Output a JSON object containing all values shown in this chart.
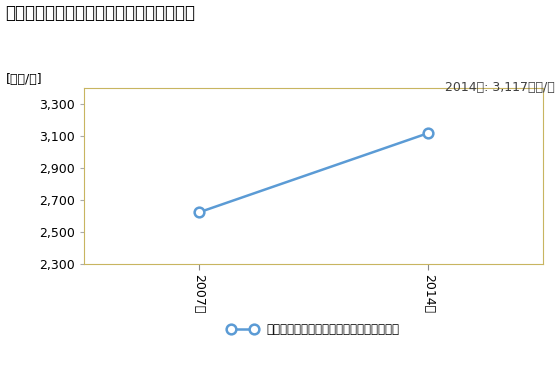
{
  "title": "卸売業の従業者一人当たり年間商品販売額",
  "ylabel": "[万円/人]",
  "annotation": "2014年: 3,117万円/人",
  "x_values": [
    2007,
    2014
  ],
  "y_values": [
    2620,
    3117
  ],
  "x_tick_labels": [
    "2007年",
    "2014年"
  ],
  "ylim": [
    2300,
    3400
  ],
  "yticks": [
    2300,
    2500,
    2700,
    2900,
    3100,
    3300
  ],
  "line_color": "#5b9bd5",
  "marker_color": "#5b9bd5",
  "legend_label": "卸売業の従業者一人当たり年間商品販売額",
  "plot_bg_color": "#ffffff",
  "border_color": "#c8b560",
  "title_fontsize": 12,
  "label_fontsize": 9,
  "tick_fontsize": 9,
  "annotation_fontsize": 9,
  "legend_fontsize": 8.5
}
